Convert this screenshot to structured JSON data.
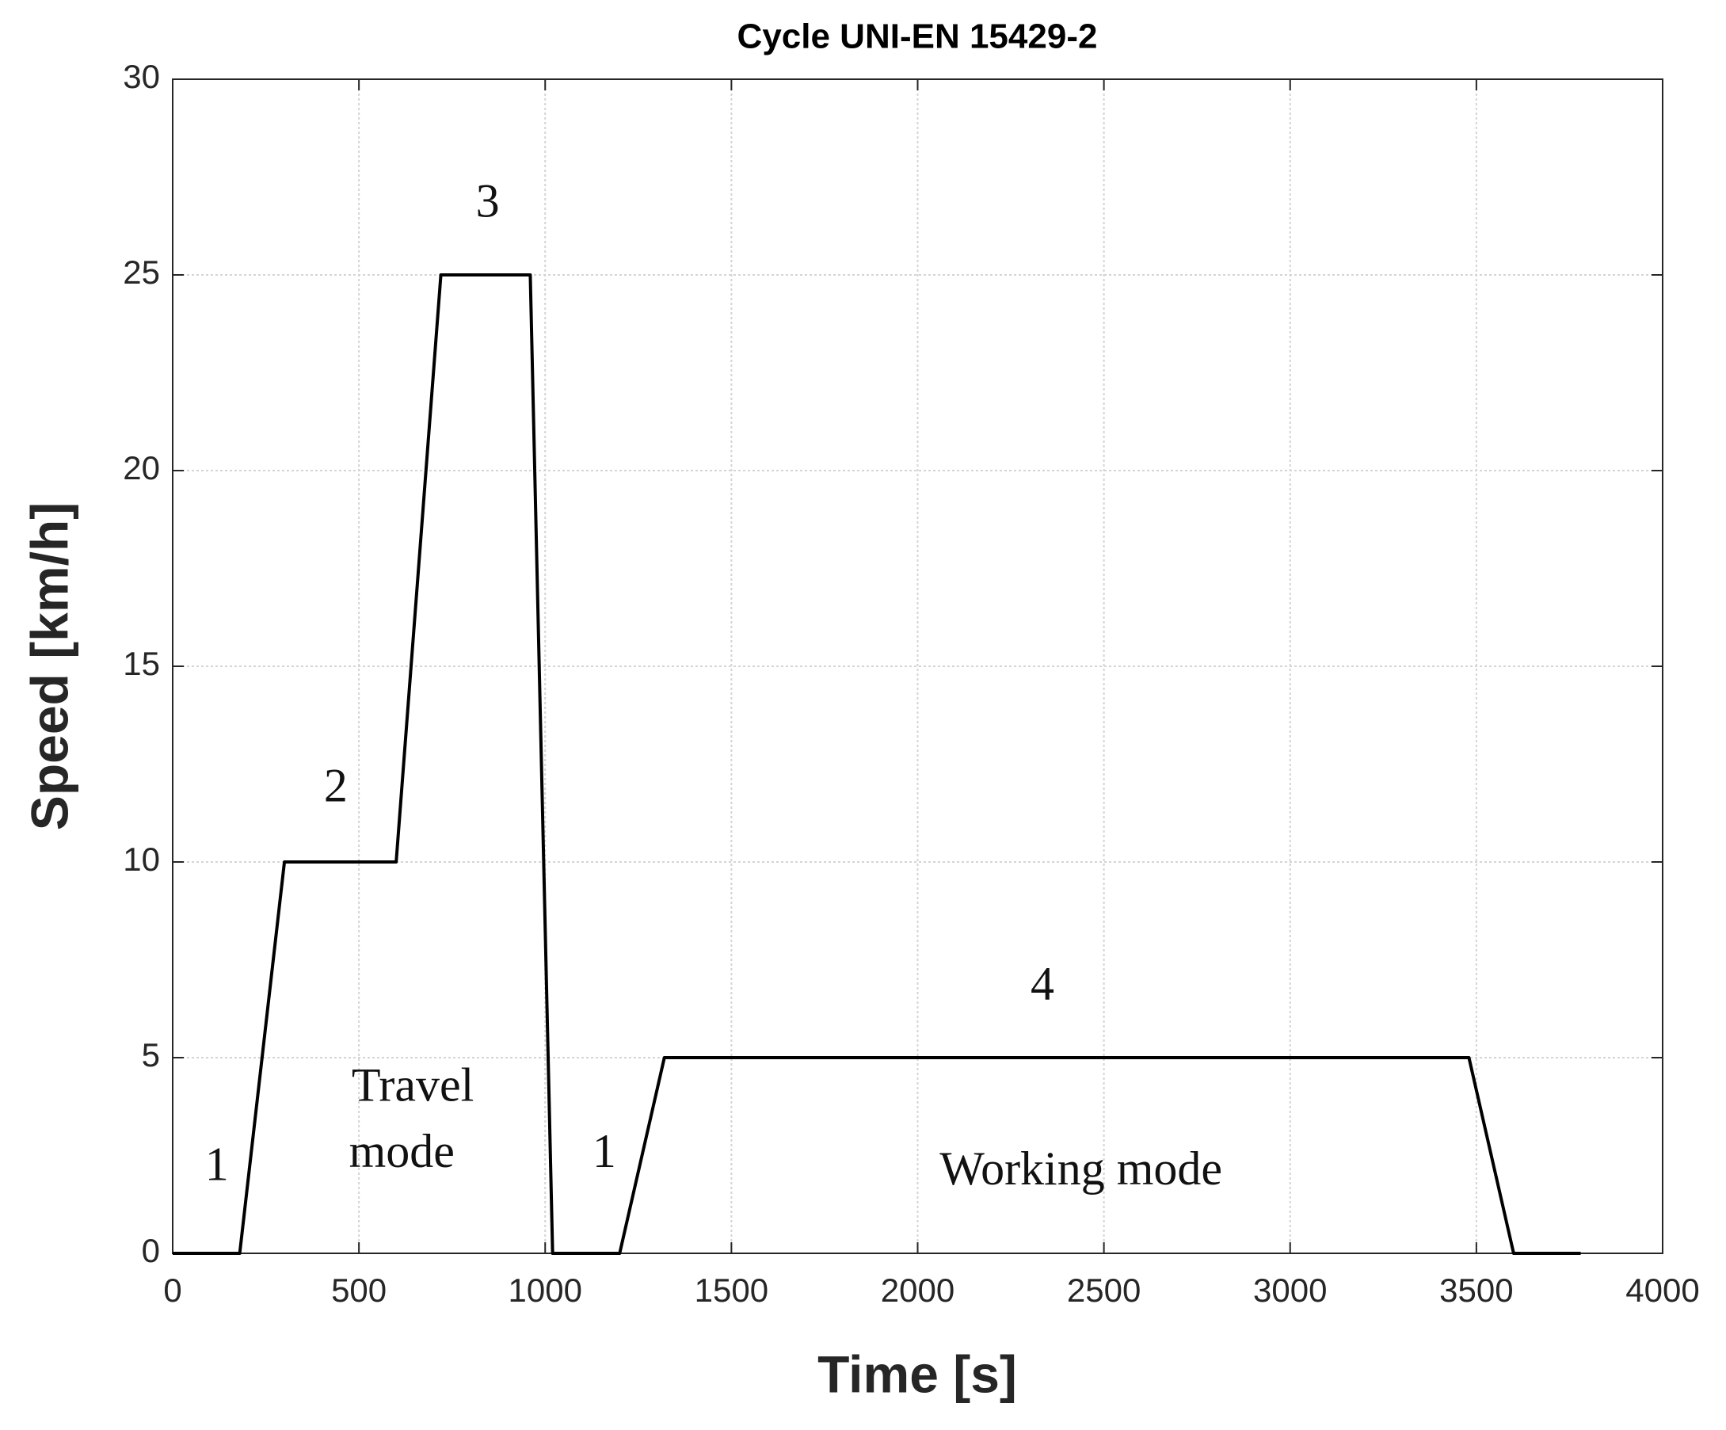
{
  "chart_data": {
    "type": "line",
    "title": "Cycle UNI-EN 15429-2",
    "x_label": "Time [s]",
    "y_label": "Speed [km/h]",
    "x": [
      0,
      180,
      300,
      600,
      720,
      960,
      1020,
      1200,
      1320,
      3480,
      3600,
      3780
    ],
    "series": [
      {
        "color": "#000000",
        "values": [
          0,
          0,
          10,
          10,
          25,
          25,
          0,
          0,
          5,
          5,
          0,
          0
        ]
      }
    ],
    "xlim": [
      0,
      4000
    ],
    "xticks": [
      0,
      500,
      1000,
      1500,
      2000,
      2500,
      3000,
      3500,
      4000
    ],
    "ylim": [
      0,
      30
    ],
    "yticks": [
      0,
      5,
      10,
      15,
      20,
      25,
      30
    ],
    "grid": true,
    "annotations": [
      "1",
      "2",
      "3",
      "Travel",
      "mode",
      "1",
      "4",
      "Working mode"
    ]
  }
}
